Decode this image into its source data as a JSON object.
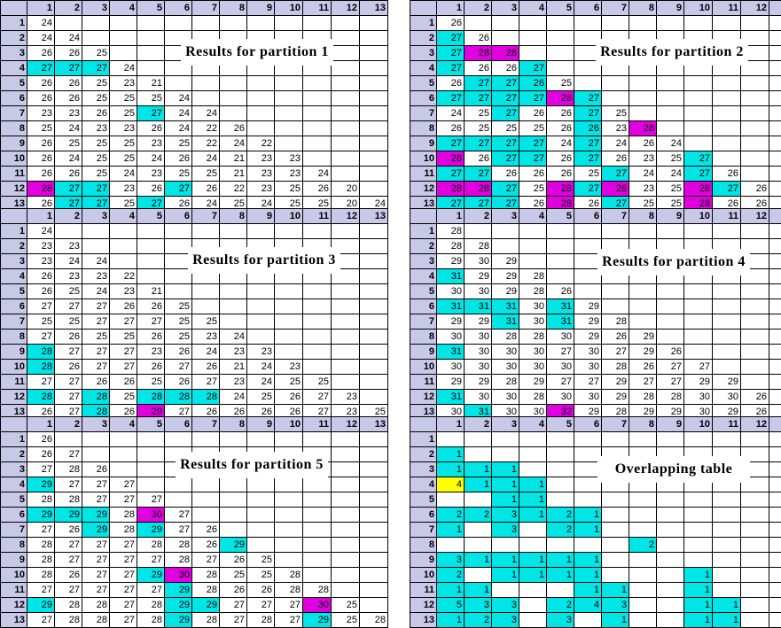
{
  "column_headers": [
    "1",
    "2",
    "3",
    "4",
    "5",
    "6",
    "7",
    "8",
    "9",
    "10",
    "11",
    "12",
    "13"
  ],
  "row_headers": [
    "1",
    "2",
    "3",
    "4",
    "5",
    "6",
    "7",
    "8",
    "9",
    "10",
    "11",
    "12",
    "13"
  ],
  "highlight_colors": {
    "c": "#00e5e5",
    "m": "#e000e0",
    "y": "#ffff00"
  },
  "tables": [
    {
      "title": "Results for partition 1",
      "rows": [
        [
          "24"
        ],
        [
          "24",
          "24"
        ],
        [
          "26",
          "26",
          "25"
        ],
        [
          "27",
          "27",
          "27",
          "24"
        ],
        [
          "26",
          "26",
          "25",
          "23",
          "21"
        ],
        [
          "26",
          "26",
          "25",
          "25",
          "25",
          "24"
        ],
        [
          "23",
          "23",
          "26",
          "25",
          "27",
          "24",
          "24"
        ],
        [
          "25",
          "24",
          "23",
          "23",
          "26",
          "24",
          "22",
          "26"
        ],
        [
          "26",
          "25",
          "25",
          "25",
          "23",
          "25",
          "22",
          "24",
          "22"
        ],
        [
          "26",
          "24",
          "25",
          "25",
          "24",
          "26",
          "24",
          "21",
          "23",
          "23"
        ],
        [
          "26",
          "26",
          "25",
          "24",
          "23",
          "25",
          "25",
          "21",
          "23",
          "23",
          "24"
        ],
        [
          "28",
          "27",
          "27",
          "23",
          "26",
          "27",
          "26",
          "22",
          "23",
          "25",
          "26",
          "20"
        ],
        [
          "26",
          "27",
          "27",
          "25",
          "27",
          "26",
          "24",
          "25",
          "24",
          "25",
          "25",
          "20",
          "24"
        ]
      ],
      "highlights": {
        "4-1": "c",
        "4-2": "c",
        "4-3": "c",
        "7-5": "c",
        "12-1": "m",
        "12-2": "c",
        "12-3": "c",
        "12-6": "c",
        "13-2": "c",
        "13-3": "c",
        "13-5": "c"
      }
    },
    {
      "title": "Results for partition 2",
      "rows": [
        [
          "26"
        ],
        [
          "27",
          "26"
        ],
        [
          "27",
          "28",
          "28"
        ],
        [
          "27",
          "26",
          "26",
          "27"
        ],
        [
          "26",
          "27",
          "27",
          "26",
          "25"
        ],
        [
          "27",
          "27",
          "27",
          "27",
          "28",
          "27"
        ],
        [
          "24",
          "25",
          "27",
          "26",
          "26",
          "27",
          "25"
        ],
        [
          "26",
          "25",
          "25",
          "25",
          "26",
          "26",
          "23",
          "28"
        ],
        [
          "27",
          "27",
          "27",
          "27",
          "24",
          "27",
          "24",
          "26",
          "24"
        ],
        [
          "28",
          "26",
          "27",
          "27",
          "26",
          "27",
          "26",
          "23",
          "25",
          "27"
        ],
        [
          "27",
          "27",
          "26",
          "26",
          "26",
          "25",
          "27",
          "24",
          "24",
          "27",
          "26"
        ],
        [
          "28",
          "28",
          "27",
          "25",
          "28",
          "27",
          "28",
          "23",
          "25",
          "28",
          "27",
          "26"
        ],
        [
          "27",
          "27",
          "27",
          "26",
          "28",
          "26",
          "27",
          "25",
          "25",
          "28",
          "26",
          "26",
          "26"
        ]
      ],
      "highlights": {
        "2-1": "c",
        "3-1": "c",
        "3-2": "m",
        "3-3": "m",
        "4-1": "c",
        "4-4": "c",
        "5-2": "c",
        "5-3": "c",
        "5-4": "c",
        "6-1": "c",
        "6-2": "c",
        "6-3": "c",
        "6-4": "c",
        "6-5": "m",
        "6-6": "c",
        "7-3": "c",
        "7-6": "c",
        "8-6": "c",
        "8-8": "m",
        "9-1": "c",
        "9-2": "c",
        "9-3": "c",
        "9-4": "c",
        "9-6": "c",
        "10-1": "m",
        "10-3": "c",
        "10-4": "c",
        "10-6": "c",
        "10-10": "c",
        "11-1": "c",
        "11-2": "c",
        "11-7": "c",
        "11-10": "c",
        "12-1": "m",
        "12-2": "m",
        "12-3": "c",
        "12-5": "m",
        "12-6": "c",
        "12-7": "m",
        "12-10": "m",
        "12-11": "c",
        "13-1": "c",
        "13-2": "c",
        "13-3": "c",
        "13-5": "m",
        "13-7": "c",
        "13-10": "m"
      }
    },
    {
      "title": "Results for partition 3",
      "rows": [
        [
          "24"
        ],
        [
          "23",
          "23"
        ],
        [
          "23",
          "24",
          "24"
        ],
        [
          "26",
          "23",
          "23",
          "22"
        ],
        [
          "26",
          "25",
          "24",
          "23",
          "21"
        ],
        [
          "27",
          "27",
          "27",
          "26",
          "26",
          "25"
        ],
        [
          "25",
          "25",
          "27",
          "27",
          "27",
          "25",
          "25"
        ],
        [
          "27",
          "26",
          "25",
          "25",
          "26",
          "25",
          "23",
          "24"
        ],
        [
          "28",
          "27",
          "27",
          "27",
          "23",
          "26",
          "24",
          "23",
          "23"
        ],
        [
          "28",
          "26",
          "27",
          "27",
          "26",
          "27",
          "26",
          "21",
          "24",
          "23"
        ],
        [
          "27",
          "27",
          "26",
          "26",
          "25",
          "26",
          "27",
          "23",
          "24",
          "25",
          "25"
        ],
        [
          "28",
          "27",
          "28",
          "25",
          "28",
          "28",
          "28",
          "24",
          "25",
          "26",
          "27",
          "23"
        ],
        [
          "26",
          "27",
          "28",
          "26",
          "29",
          "27",
          "26",
          "26",
          "26",
          "26",
          "27",
          "23",
          "25"
        ]
      ],
      "highlights": {
        "9-1": "c",
        "10-1": "c",
        "12-1": "c",
        "12-3": "c",
        "12-5": "c",
        "12-6": "c",
        "12-7": "c",
        "13-3": "c",
        "13-5": "m"
      }
    },
    {
      "title": "Results for partition 4",
      "rows": [
        [
          "28"
        ],
        [
          "28",
          "28"
        ],
        [
          "29",
          "30",
          "29"
        ],
        [
          "31",
          "29",
          "29",
          "28"
        ],
        [
          "30",
          "30",
          "29",
          "28",
          "26"
        ],
        [
          "31",
          "31",
          "31",
          "30",
          "31",
          "29"
        ],
        [
          "29",
          "29",
          "31",
          "30",
          "31",
          "29",
          "28"
        ],
        [
          "30",
          "30",
          "28",
          "28",
          "30",
          "29",
          "26",
          "29"
        ],
        [
          "31",
          "30",
          "30",
          "30",
          "27",
          "30",
          "27",
          "29",
          "26"
        ],
        [
          "30",
          "30",
          "30",
          "30",
          "30",
          "30",
          "28",
          "26",
          "27",
          "27"
        ],
        [
          "29",
          "29",
          "28",
          "29",
          "27",
          "27",
          "29",
          "27",
          "27",
          "29",
          "29"
        ],
        [
          "31",
          "30",
          "30",
          "28",
          "30",
          "30",
          "29",
          "28",
          "28",
          "30",
          "30",
          "26"
        ],
        [
          "30",
          "31",
          "30",
          "30",
          "32",
          "29",
          "28",
          "29",
          "29",
          "30",
          "29",
          "26",
          "29"
        ]
      ],
      "highlights": {
        "4-1": "c",
        "6-1": "c",
        "6-2": "c",
        "6-3": "c",
        "6-5": "c",
        "7-3": "c",
        "7-5": "c",
        "9-1": "c",
        "12-1": "c",
        "13-2": "c",
        "13-5": "m"
      }
    },
    {
      "title": "Results for partition 5",
      "rows": [
        [
          "26"
        ],
        [
          "26",
          "27"
        ],
        [
          "27",
          "28",
          "26"
        ],
        [
          "29",
          "27",
          "27",
          "27"
        ],
        [
          "28",
          "28",
          "27",
          "27",
          "27"
        ],
        [
          "29",
          "29",
          "29",
          "28",
          "30",
          "27"
        ],
        [
          "27",
          "26",
          "29",
          "28",
          "29",
          "27",
          "26"
        ],
        [
          "28",
          "27",
          "27",
          "27",
          "28",
          "28",
          "26",
          "29"
        ],
        [
          "28",
          "27",
          "27",
          "27",
          "27",
          "28",
          "27",
          "26",
          "25"
        ],
        [
          "28",
          "26",
          "27",
          "27",
          "29",
          "30",
          "28",
          "25",
          "25",
          "28"
        ],
        [
          "27",
          "27",
          "27",
          "27",
          "27",
          "29",
          "28",
          "26",
          "26",
          "28",
          "28"
        ],
        [
          "29",
          "28",
          "28",
          "27",
          "28",
          "29",
          "29",
          "27",
          "27",
          "27",
          "30",
          "25"
        ],
        [
          "27",
          "28",
          "28",
          "27",
          "28",
          "29",
          "28",
          "27",
          "28",
          "27",
          "29",
          "25",
          "28"
        ]
      ],
      "highlights": {
        "4-1": "c",
        "6-1": "c",
        "6-2": "c",
        "6-3": "c",
        "6-5": "m",
        "7-3": "c",
        "7-5": "c",
        "8-8": "c",
        "10-5": "c",
        "10-6": "m",
        "11-6": "c",
        "12-1": "c",
        "12-6": "c",
        "12-7": "c",
        "12-11": "m",
        "13-6": "c",
        "13-11": "c"
      }
    },
    {
      "title": "Overlapping table",
      "rows": [
        [
          ""
        ],
        [
          "1",
          ""
        ],
        [
          "1",
          "1",
          "1"
        ],
        [
          "4",
          "1",
          "1",
          "1"
        ],
        [
          "",
          "",
          "1",
          "1",
          ""
        ],
        [
          "2",
          "2",
          "3",
          "1",
          "2",
          "1"
        ],
        [
          "1",
          "",
          "3",
          "",
          "2",
          "1",
          ""
        ],
        [
          "",
          "",
          "",
          "",
          "",
          "",
          "",
          "2"
        ],
        [
          "3",
          "1",
          "1",
          "1",
          "1",
          "1",
          "",
          "",
          ""
        ],
        [
          "2",
          "",
          "1",
          "1",
          "1",
          "1",
          "",
          "",
          "",
          "1"
        ],
        [
          "1",
          "1",
          "",
          "",
          "",
          "1",
          "1",
          "",
          "",
          "1",
          ""
        ],
        [
          "5",
          "3",
          "3",
          "",
          "2",
          "4",
          "3",
          "",
          "",
          "1",
          "1",
          ""
        ],
        [
          "1",
          "2",
          "3",
          "",
          "3",
          "",
          "1",
          "",
          "",
          "1",
          "1",
          "",
          ""
        ]
      ],
      "highlights": {
        "2-1": "c",
        "3-1": "c",
        "3-2": "c",
        "3-3": "c",
        "4-1": "y",
        "4-2": "c",
        "4-3": "c",
        "4-4": "c",
        "5-3": "c",
        "5-4": "c",
        "6-1": "c",
        "6-2": "c",
        "6-3": "c",
        "6-4": "c",
        "6-5": "c",
        "6-6": "c",
        "7-1": "c",
        "7-3": "c",
        "7-5": "c",
        "7-6": "c",
        "8-8": "c",
        "9-1": "c",
        "9-2": "c",
        "9-3": "c",
        "9-4": "c",
        "9-5": "c",
        "9-6": "c",
        "10-1": "c",
        "10-3": "c",
        "10-4": "c",
        "10-5": "c",
        "10-6": "c",
        "10-10": "c",
        "11-1": "c",
        "11-2": "c",
        "11-6": "c",
        "11-7": "c",
        "11-10": "c",
        "12-1": "c",
        "12-2": "c",
        "12-3": "c",
        "12-5": "c",
        "12-6": "c",
        "12-7": "c",
        "12-10": "c",
        "12-11": "c",
        "13-1": "c",
        "13-2": "c",
        "13-3": "c",
        "13-5": "c",
        "13-7": "c",
        "13-10": "c",
        "13-11": "c"
      }
    }
  ]
}
